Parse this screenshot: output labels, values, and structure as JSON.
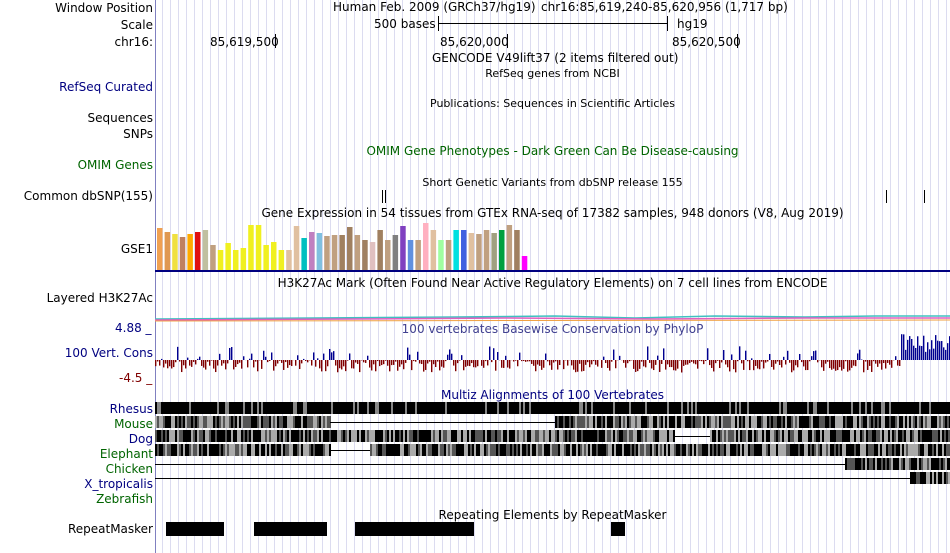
{
  "header": {
    "position_label": "Window Position",
    "scale_label": "Scale",
    "chrom_label": "chr16:",
    "assembly": "Human Feb. 2009 (GRCh37/hg19)",
    "range": "chr16:85,619,240-85,620,956 (1,717 bp)",
    "scale_value": "500 bases",
    "db": "hg19",
    "ticks": [
      "85,619,500",
      "85,620,000",
      "85,620,500"
    ]
  },
  "tracks": [
    {
      "label": "",
      "title": "GENCODE V49lift37 (2 items filtered out)"
    },
    {
      "label": "RefSeq Curated",
      "title": "RefSeq genes from NCBI"
    },
    {
      "label": "",
      "title": "Publications: Sequences in Scientific Articles"
    },
    {
      "label": "Sequences",
      "title": ""
    },
    {
      "label": "SNPs",
      "title": ""
    },
    {
      "label": "OMIM Genes",
      "title": "OMIM Gene Phenotypes - Dark Green Can Be Disease-causing"
    },
    {
      "label": "",
      "title": "Short Genetic Variants from dbSNP release 155"
    },
    {
      "label": "Common dbSNP(155)",
      "title": ""
    },
    {
      "label": "",
      "title": "Gene Expression in 54 tissues from GTEx RNA-seq of 17382 samples, 948 donors (V8, Aug 2019)"
    },
    {
      "label": "GSE1",
      "title": ""
    },
    {
      "label": "Layered H3K27Ac",
      "title": "H3K27Ac Mark (Often Found Near Active Regulatory Elements) on 7 cell lines from ENCODE"
    },
    {
      "label": "100 Vert. Cons",
      "title": "100 vertebrates Basewise Conservation by PhyloP"
    },
    {
      "label": "",
      "title": "Multiz Alignments of 100 Vertebrates"
    },
    {
      "label": "RepeatMasker",
      "title": "Repeating Elements by RepeatMasker"
    }
  ],
  "conservation": {
    "max": "4.88 _",
    "min": "-4.5 _"
  },
  "species": [
    "Rhesus",
    "Mouse",
    "Dog",
    "Elephant",
    "Chicken",
    "X_tropicalis",
    "Zebrafish"
  ],
  "gtex_values": [
    42,
    38,
    36,
    33,
    36,
    38,
    40,
    25,
    20,
    27,
    20,
    22,
    45,
    45,
    25,
    28,
    20,
    20,
    44,
    32,
    38,
    37,
    34,
    35,
    35,
    43,
    35,
    30,
    28,
    40,
    30,
    35,
    44,
    30,
    30,
    47,
    40,
    30,
    30,
    40,
    40,
    37,
    36,
    40,
    37,
    40,
    45,
    40,
    14
  ],
  "gtex_colors": [
    "#f0a050",
    "#e09850",
    "#f0e040",
    "#c08060",
    "#ffaa00",
    "#e01010",
    "#c0c0a0",
    "#c0a080",
    "#f0f020",
    "#f0f020",
    "#f0f020",
    "#f0f020",
    "#f0f020",
    "#f0f020",
    "#f0f020",
    "#f0f020",
    "#f0f020",
    "#e0c0a0",
    "#e0c0a0",
    "#00c0c0",
    "#c080c0",
    "#80c0e0",
    "#c0a080",
    "#c0a080",
    "#a08060",
    "#a08060",
    "#c0a080",
    "#a08060",
    "#e0c0c0",
    "#a08060",
    "#c0a080",
    "#808080",
    "#8040c0",
    "#6090e0",
    "#c0a080",
    "#ffb0c0",
    "#e0c0a0",
    "#a0ffa0",
    "#c0a080",
    "#00e0e0",
    "#4060e0",
    "#e0c0a0",
    "#c0a080",
    "#c0a080",
    "#a0a080",
    "#00a040",
    "#c0a080",
    "#a08060",
    "#ff00ff"
  ],
  "colors": {
    "label_blue": "#000080",
    "label_green": "#006400",
    "cons_red": "#800000"
  }
}
